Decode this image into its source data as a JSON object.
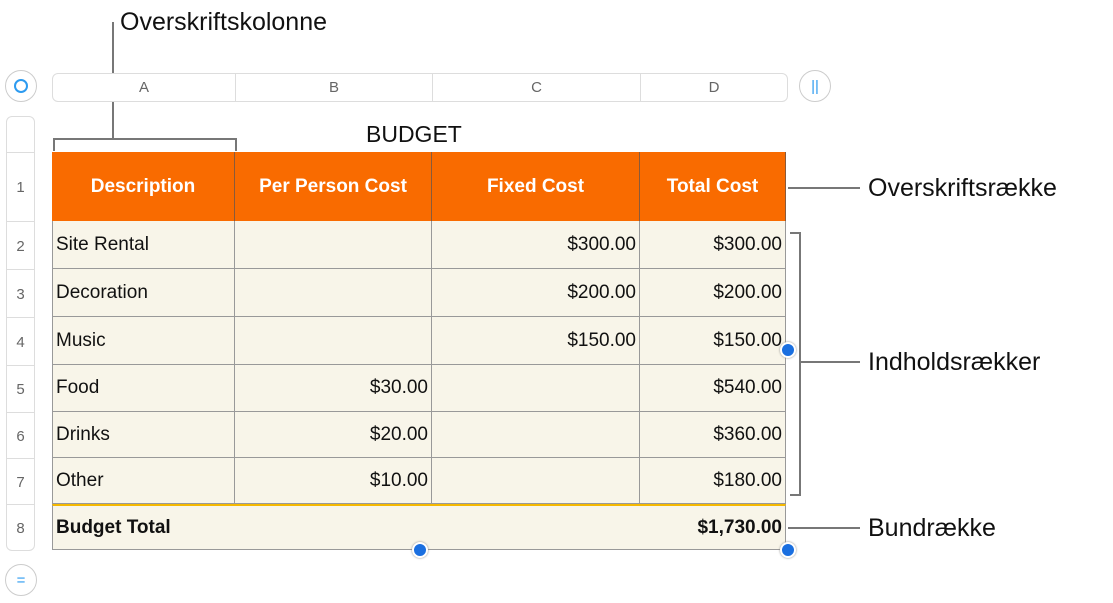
{
  "callouts": {
    "header_column": "Overskriftskolonne",
    "header_row": "Overskriftsrække",
    "body_rows": "Indholdsrækker",
    "footer_row": "Bundrække"
  },
  "table": {
    "title": "BUDGET",
    "column_letters": [
      "A",
      "B",
      "C",
      "D"
    ],
    "row_numbers": [
      "1",
      "2",
      "3",
      "4",
      "5",
      "6",
      "7",
      "8"
    ],
    "headers": [
      "Description",
      "Per Person Cost",
      "Fixed Cost",
      "Total Cost"
    ],
    "rows": [
      [
        "Site Rental",
        "",
        "$300.00",
        "$300.00"
      ],
      [
        "Decoration",
        "",
        "$200.00",
        "$200.00"
      ],
      [
        "Music",
        "",
        "$150.00",
        "$150.00"
      ],
      [
        "Food",
        "$30.00",
        "",
        "$540.00"
      ],
      [
        "Drinks",
        "$20.00",
        "",
        "$360.00"
      ],
      [
        "Other",
        "$10.00",
        "",
        "$180.00"
      ]
    ],
    "footer": {
      "label": "Budget Total",
      "total": "$1,730.00"
    },
    "header_color": "#f96b00",
    "body_color": "#f8f5e9",
    "footer_separator_color": "#f5b800",
    "handle_color": "#1a6fe0"
  }
}
